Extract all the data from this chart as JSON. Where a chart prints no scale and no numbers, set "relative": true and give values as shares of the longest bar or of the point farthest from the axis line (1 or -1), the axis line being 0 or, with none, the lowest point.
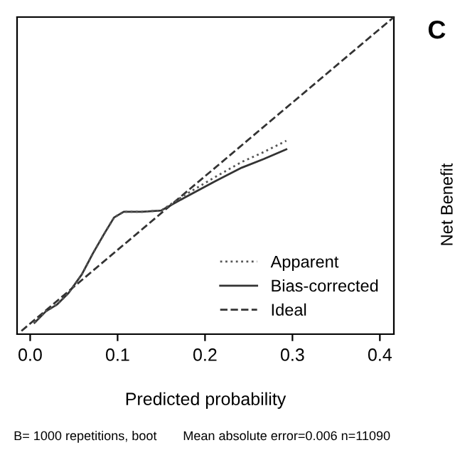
{
  "chart_data": {
    "type": "line",
    "relative": true,
    "xlabel": "Predicted probability",
    "xlim": [
      -0.015,
      0.416
    ],
    "xticks": [
      {
        "value": 0,
        "label": "0.0"
      },
      0.1,
      0.2,
      0.3,
      0.4
    ],
    "legend": "bottom right",
    "grid": false,
    "series": [
      {
        "name": "Apparent",
        "color": "#555555",
        "line_style": "dotted",
        "x": [
          0.005,
          0.018,
          0.031,
          0.044,
          0.059,
          0.072,
          0.085,
          0.096,
          0.107,
          0.128,
          0.15,
          0.177,
          0.21,
          0.242,
          0.267,
          0.293
        ],
        "values": [
          0.036,
          0.072,
          0.094,
          0.13,
          0.188,
          0.256,
          0.318,
          0.368,
          0.386,
          0.386,
          0.39,
          0.439,
          0.493,
          0.543,
          0.574,
          0.61
        ]
      },
      {
        "name": "Bias-corrected",
        "color": "#333333",
        "line_style": "solid",
        "x": [
          0.005,
          0.018,
          0.031,
          0.044,
          0.059,
          0.072,
          0.085,
          0.096,
          0.107,
          0.128,
          0.15,
          0.177,
          0.21,
          0.242,
          0.267,
          0.293
        ],
        "values": [
          0.036,
          0.072,
          0.094,
          0.13,
          0.188,
          0.256,
          0.318,
          0.368,
          0.386,
          0.386,
          0.39,
          0.431,
          0.48,
          0.525,
          0.552,
          0.583
        ]
      },
      {
        "name": "Ideal",
        "color": "#333333",
        "line_style": "dashed",
        "x": [
          -0.01,
          0.416
        ],
        "values": [
          0.01,
          1.0
        ]
      }
    ],
    "annotations": [
      "B= 1000 repetitions, boot",
      "Mean absolute error=0.006 n=11090",
      "C",
      "Net Benefit"
    ]
  }
}
